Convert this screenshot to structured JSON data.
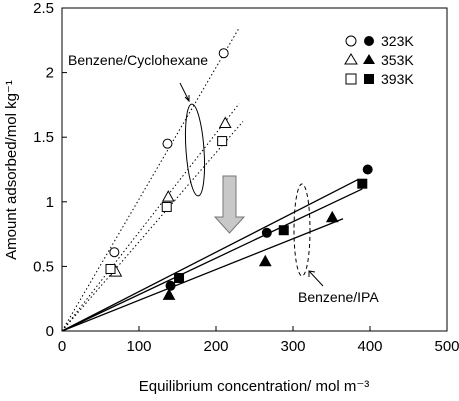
{
  "chart_data": {
    "type": "scatter",
    "title": "",
    "xlabel": "Equilibrium concentration/ mol m⁻³",
    "ylabel": "Amount adsorbed/mol kg⁻¹",
    "xlim": [
      0,
      500
    ],
    "ylim": [
      0,
      2.5
    ],
    "x_ticks": [
      "0",
      "100",
      "200",
      "300",
      "400",
      "500"
    ],
    "y_ticks": [
      "0",
      "0.5",
      "1",
      "1.5",
      "2",
      "2.5"
    ],
    "grid": false,
    "legend_position": "top-right",
    "legend": [
      {
        "label": "323K",
        "open_marker": "circle",
        "filled_marker": "circle"
      },
      {
        "label": "353K",
        "open_marker": "triangle",
        "filled_marker": "triangle"
      },
      {
        "label": "393K",
        "open_marker": "square",
        "filled_marker": "square"
      }
    ],
    "annotations": [
      {
        "text": "Benzene/Cyclohexane"
      },
      {
        "text": "Benzene/IPA"
      }
    ],
    "series": [
      {
        "system": "Benzene/Cyclohexane",
        "temperature": "323K",
        "marker": "circle",
        "filled": false,
        "x": [
          68,
          137,
          210
        ],
        "y": [
          0.61,
          1.45,
          2.15
        ],
        "fit": {
          "style": "dotted",
          "slope": 0.0102,
          "x_end": 230
        }
      },
      {
        "system": "Benzene/Cyclohexane",
        "temperature": "353K",
        "marker": "triangle",
        "filled": false,
        "x": [
          70,
          138,
          212
        ],
        "y": [
          0.46,
          1.04,
          1.61
        ],
        "fit": {
          "style": "dotted",
          "slope": 0.00765,
          "x_end": 230
        }
      },
      {
        "system": "Benzene/Cyclohexane",
        "temperature": "393K",
        "marker": "square",
        "filled": false,
        "x": [
          63,
          136,
          208
        ],
        "y": [
          0.48,
          0.96,
          1.47
        ],
        "fit": {
          "style": "dotted",
          "slope": 0.0069,
          "x_end": 235
        }
      },
      {
        "system": "Benzene/IPA",
        "temperature": "323K",
        "marker": "circle",
        "filled": true,
        "x": [
          141,
          266,
          397
        ],
        "y": [
          0.35,
          0.76,
          1.25
        ],
        "fit": {
          "style": "solid",
          "slope": 0.00305,
          "x_end": 385
        }
      },
      {
        "system": "Benzene/IPA",
        "temperature": "353K",
        "marker": "triangle",
        "filled": true,
        "x": [
          139,
          264,
          351
        ],
        "y": [
          0.28,
          0.54,
          0.88
        ],
        "fit": {
          "style": "solid",
          "slope": 0.00238,
          "x_end": 365
        }
      },
      {
        "system": "Benzene/IPA",
        "temperature": "393K",
        "marker": "square",
        "filled": true,
        "x": [
          152,
          288,
          390
        ],
        "y": [
          0.41,
          0.78,
          1.14
        ],
        "fit": {
          "style": "solid",
          "slope": 0.00282,
          "x_end": 390
        }
      }
    ]
  }
}
